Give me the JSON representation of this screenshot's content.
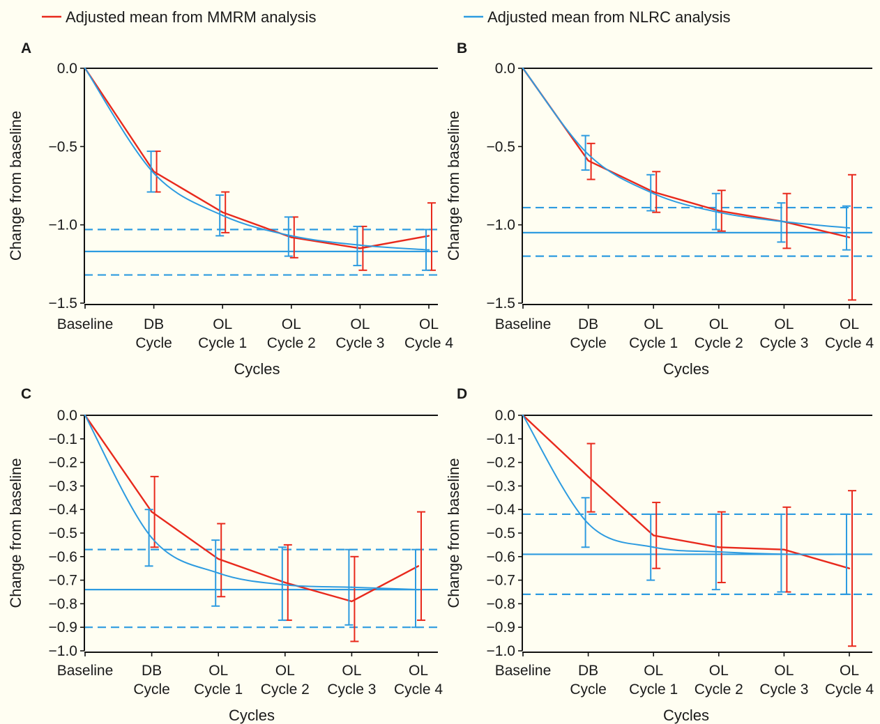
{
  "legend": {
    "mmrm": {
      "label": "Adjusted mean from MMRM analysis",
      "color": "#e8291c"
    },
    "nlrc": {
      "label": "Adjusted mean from NLRC analysis",
      "color": "#2d9be0"
    }
  },
  "panels": [
    {
      "letter": "A",
      "xlabel": "Cycles",
      "ylabel": "Change from baseline"
    },
    {
      "letter": "B",
      "xlabel": "Cycles",
      "ylabel": "Change from baseline"
    },
    {
      "letter": "C",
      "xlabel": "Cycles",
      "ylabel": "Change from baseline"
    },
    {
      "letter": "D",
      "xlabel": "Cycles",
      "ylabel": "Change from baseline"
    }
  ],
  "chart_data": [
    {
      "panel": "A",
      "type": "line",
      "categories": [
        [
          "Baseline"
        ],
        [
          "DB",
          "Cycle"
        ],
        [
          "OL",
          "Cycle 1"
        ],
        [
          "OL",
          "Cycle 2"
        ],
        [
          "OL",
          "Cycle 3"
        ],
        [
          "OL",
          "Cycle 4"
        ]
      ],
      "xlabel": "Cycles",
      "ylabel": "Change from baseline",
      "ylim": [
        -1.5,
        0.0
      ],
      "yticks": [
        0.0,
        -0.5,
        -1.0,
        -1.5
      ],
      "ytick_labels": [
        "0.0",
        "−0.5",
        "−1.0",
        "−1.5"
      ],
      "series": [
        {
          "name": "Adjusted mean from MMRM analysis",
          "values": [
            0.0,
            -0.66,
            -0.92,
            -1.08,
            -1.15,
            -1.07
          ],
          "err_low": [
            null,
            -0.79,
            -1.05,
            -1.21,
            -1.29,
            -1.29
          ],
          "err_high": [
            null,
            -0.53,
            -0.79,
            -0.95,
            -1.01,
            -0.86
          ]
        },
        {
          "name": "Adjusted mean from NLRC analysis",
          "values": [
            0.0,
            -0.67,
            -0.94,
            -1.07,
            -1.13,
            -1.16
          ],
          "err_low": [
            null,
            -0.79,
            -1.07,
            -1.2,
            -1.26,
            -1.29
          ],
          "err_high": [
            null,
            -0.53,
            -0.81,
            -0.95,
            -1.01,
            -1.03
          ]
        }
      ],
      "plateau": {
        "estimate": -1.17,
        "ci_low": -1.32,
        "ci_high": -1.03
      }
    },
    {
      "panel": "B",
      "type": "line",
      "categories": [
        [
          "Baseline"
        ],
        [
          "DB",
          "Cycle"
        ],
        [
          "OL",
          "Cycle 1"
        ],
        [
          "OL",
          "Cycle 2"
        ],
        [
          "OL",
          "Cycle 3"
        ],
        [
          "OL",
          "Cycle 4"
        ]
      ],
      "xlabel": "Cycles",
      "ylabel": "Change from baseline",
      "ylim": [
        -1.5,
        0.0
      ],
      "yticks": [
        0.0,
        -0.5,
        -1.0,
        -1.5
      ],
      "ytick_labels": [
        "0.0",
        "−0.5",
        "−1.0",
        "−1.5"
      ],
      "series": [
        {
          "name": "Adjusted mean from MMRM analysis",
          "values": [
            0.0,
            -0.59,
            -0.79,
            -0.91,
            -0.98,
            -1.08
          ],
          "err_low": [
            null,
            -0.71,
            -0.92,
            -1.04,
            -1.15,
            -1.48
          ],
          "err_high": [
            null,
            -0.48,
            -0.66,
            -0.78,
            -0.8,
            -0.68
          ]
        },
        {
          "name": "Adjusted mean from NLRC analysis",
          "values": [
            0.0,
            -0.55,
            -0.8,
            -0.92,
            -0.98,
            -1.02
          ],
          "err_low": [
            null,
            -0.65,
            -0.91,
            -1.03,
            -1.11,
            -1.16
          ],
          "err_high": [
            null,
            -0.43,
            -0.68,
            -0.8,
            -0.86,
            -0.88
          ]
        }
      ],
      "plateau": {
        "estimate": -1.05,
        "ci_low": -1.2,
        "ci_high": -0.89
      }
    },
    {
      "panel": "C",
      "type": "line",
      "categories": [
        [
          "Baseline"
        ],
        [
          "DB",
          "Cycle"
        ],
        [
          "OL",
          "Cycle 1"
        ],
        [
          "OL",
          "Cycle 2"
        ],
        [
          "OL",
          "Cycle 3"
        ],
        [
          "OL",
          "Cycle 4"
        ]
      ],
      "xlabel": "Cycles",
      "ylabel": "Change from baseline",
      "ylim": [
        -1.0,
        0.0
      ],
      "yticks": [
        0.0,
        -0.1,
        -0.2,
        -0.3,
        -0.4,
        -0.5,
        -0.6,
        -0.7,
        -0.8,
        -0.9,
        -1.0
      ],
      "ytick_labels": [
        "0.0",
        "−0.1",
        "−0.2",
        "−0.3",
        "−0.4",
        "−0.5",
        "−0.6",
        "−0.7",
        "−0.8",
        "−0.9",
        "−1.0"
      ],
      "series": [
        {
          "name": "Adjusted mean from MMRM analysis",
          "values": [
            0.0,
            -0.41,
            -0.61,
            -0.71,
            -0.79,
            -0.64
          ],
          "err_low": [
            null,
            -0.56,
            -0.77,
            -0.87,
            -0.96,
            -0.87
          ],
          "err_high": [
            null,
            -0.26,
            -0.46,
            -0.55,
            -0.6,
            -0.41
          ]
        },
        {
          "name": "Adjusted mean from NLRC analysis",
          "values": [
            0.0,
            -0.52,
            -0.67,
            -0.72,
            -0.73,
            -0.74
          ],
          "err_low": [
            null,
            -0.64,
            -0.81,
            -0.87,
            -0.89,
            -0.9
          ],
          "err_high": [
            null,
            -0.4,
            -0.53,
            -0.56,
            -0.57,
            -0.57
          ]
        }
      ],
      "plateau": {
        "estimate": -0.74,
        "ci_low": -0.9,
        "ci_high": -0.57
      }
    },
    {
      "panel": "D",
      "type": "line",
      "categories": [
        [
          "Baseline"
        ],
        [
          "DB",
          "Cycle"
        ],
        [
          "OL",
          "Cycle 1"
        ],
        [
          "OL",
          "Cycle 2"
        ],
        [
          "OL",
          "Cycle 3"
        ],
        [
          "OL",
          "Cycle 4"
        ]
      ],
      "xlabel": "Cycles",
      "ylabel": "Change from baseline",
      "ylim": [
        -1.0,
        0.0
      ],
      "yticks": [
        0.0,
        -0.1,
        -0.2,
        -0.3,
        -0.4,
        -0.5,
        -0.6,
        -0.7,
        -0.8,
        -0.9,
        -1.0
      ],
      "ytick_labels": [
        "0.0",
        "−0.1",
        "−0.2",
        "−0.3",
        "−0.4",
        "−0.5",
        "−0.6",
        "−0.7",
        "−0.8",
        "−0.9",
        "−1.0"
      ],
      "series": [
        {
          "name": "Adjusted mean from MMRM analysis",
          "values": [
            0.0,
            -0.26,
            -0.51,
            -0.56,
            -0.57,
            -0.65
          ],
          "err_low": [
            null,
            -0.41,
            -0.65,
            -0.71,
            -0.75,
            -0.98
          ],
          "err_high": [
            null,
            -0.12,
            -0.37,
            -0.41,
            -0.39,
            -0.32
          ]
        },
        {
          "name": "Adjusted mean from NLRC analysis",
          "values": [
            0.0,
            -0.46,
            -0.56,
            -0.58,
            -0.59,
            -0.59
          ],
          "err_low": [
            null,
            -0.56,
            -0.7,
            -0.74,
            -0.75,
            -0.76
          ],
          "err_high": [
            null,
            -0.35,
            -0.42,
            -0.42,
            -0.42,
            -0.42
          ]
        }
      ],
      "plateau": {
        "estimate": -0.59,
        "ci_low": -0.76,
        "ci_high": -0.42
      }
    }
  ]
}
